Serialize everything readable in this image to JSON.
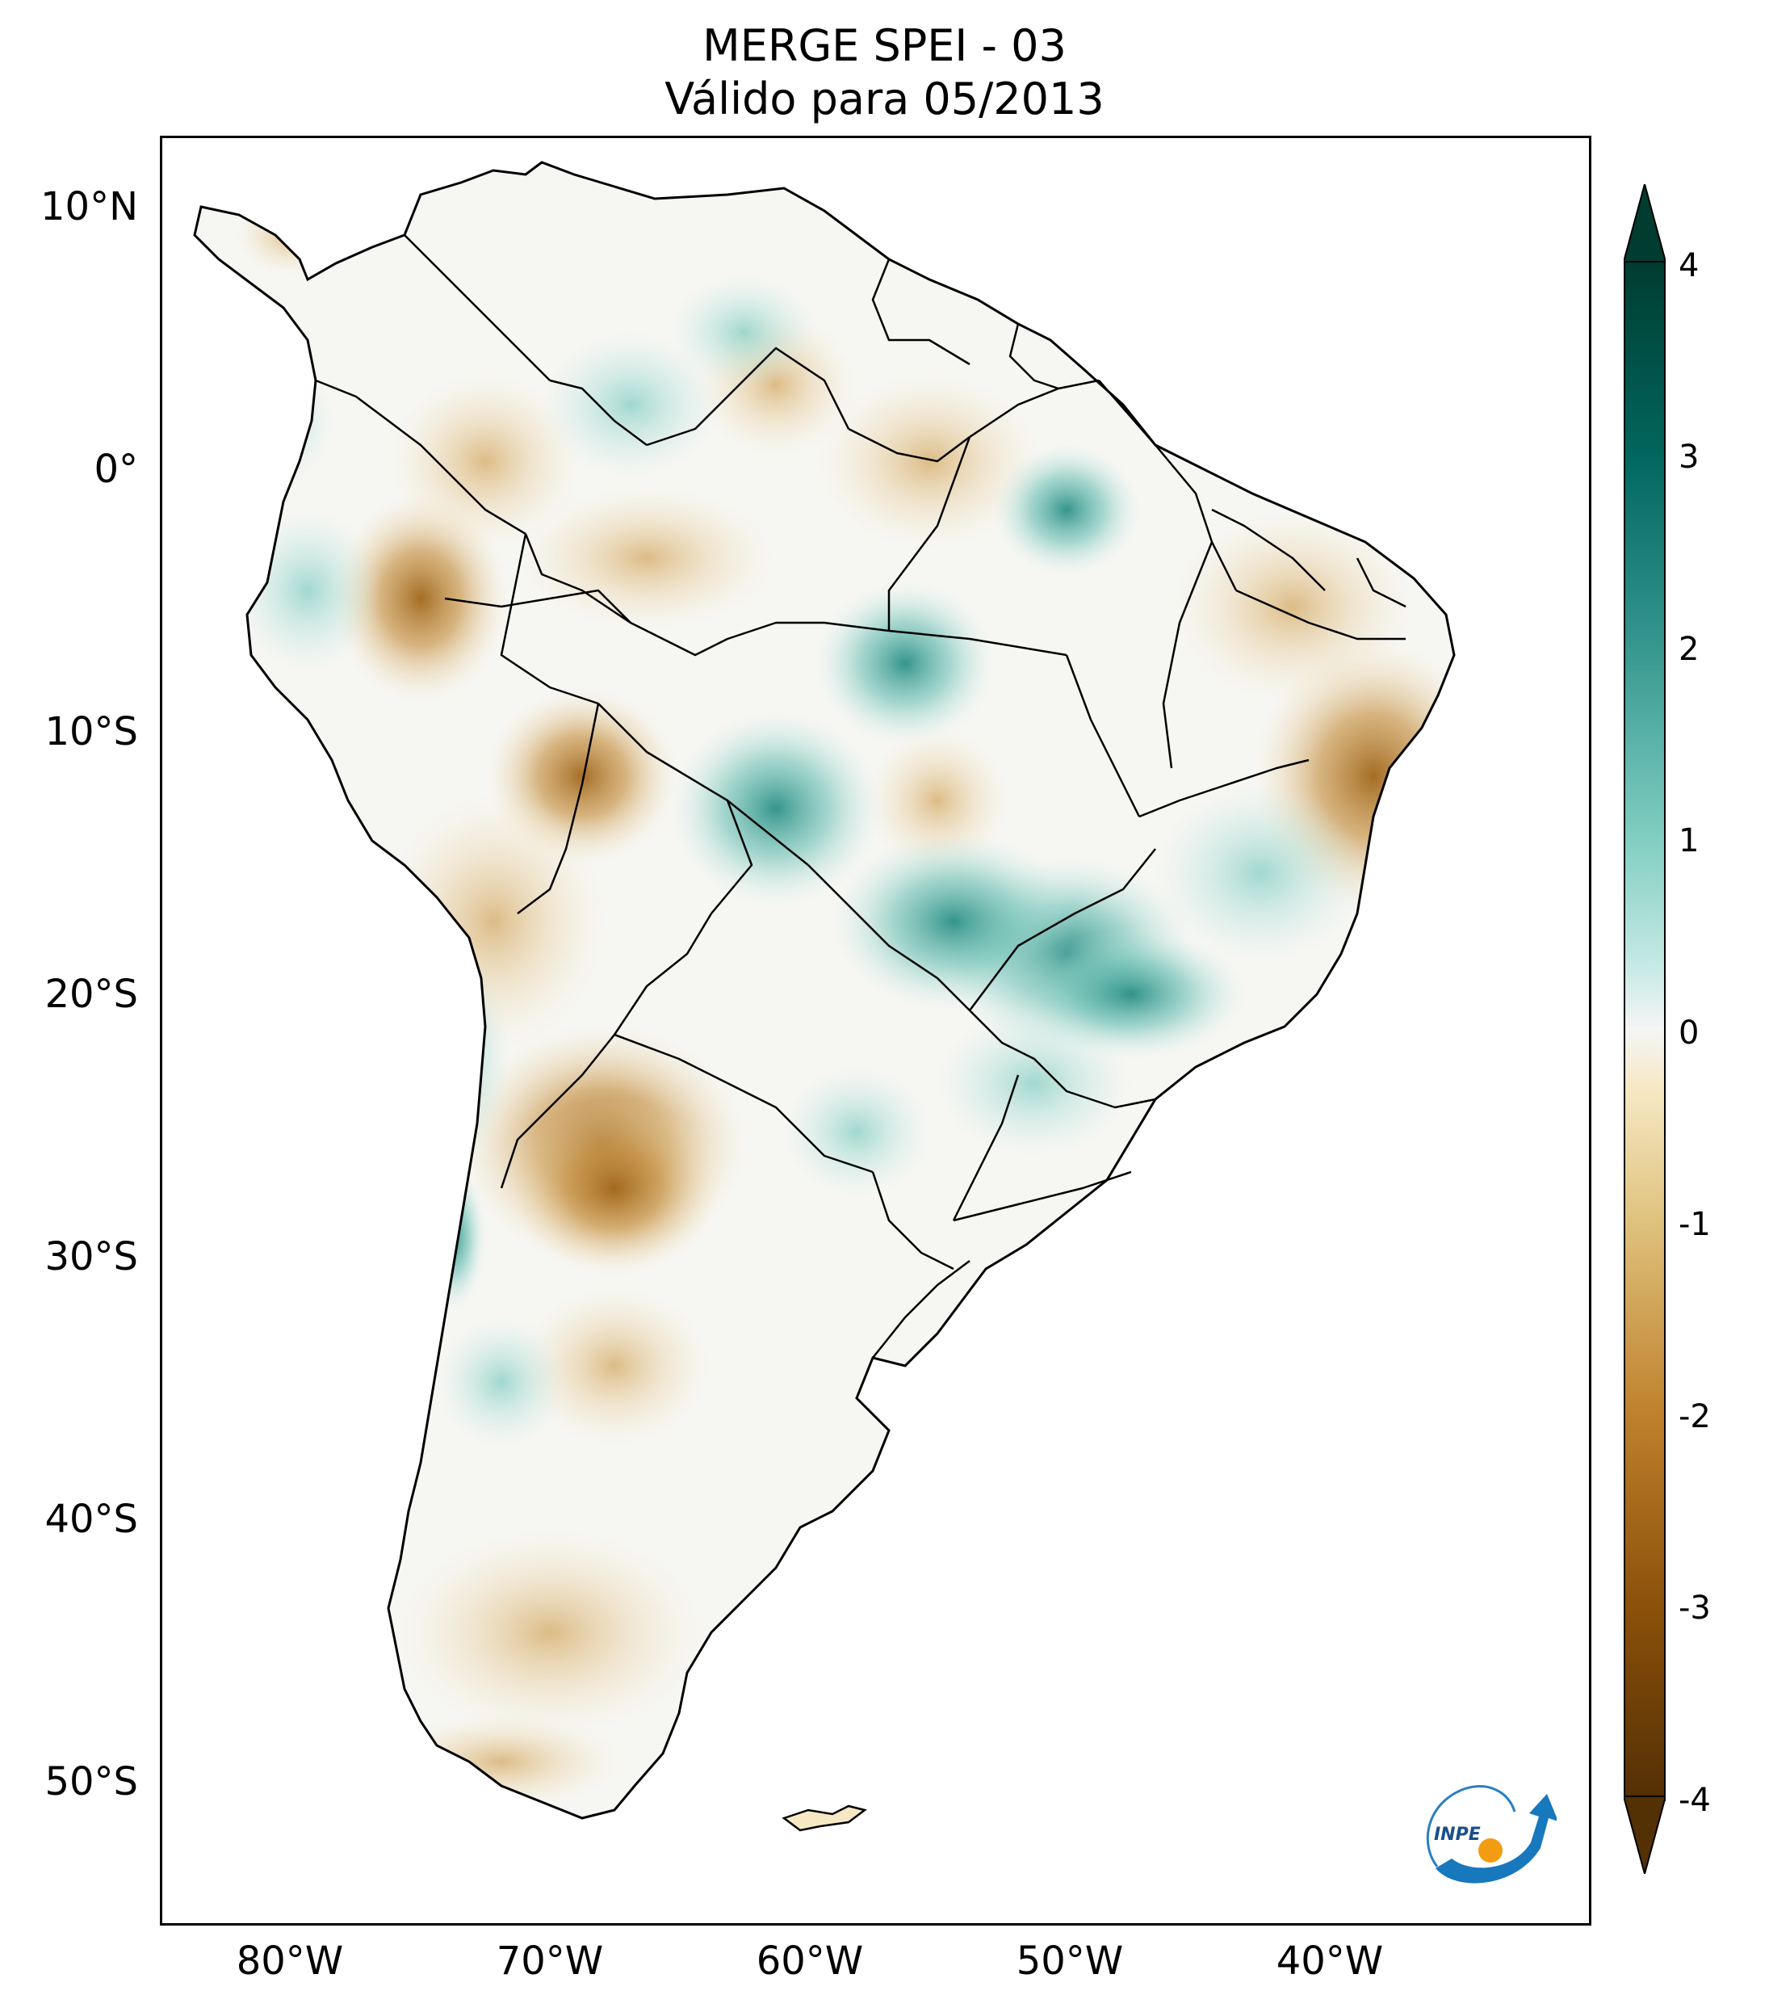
{
  "title": {
    "line1": "MERGE   SPEI - 03",
    "line2": "Válido para 05/2013"
  },
  "map": {
    "region": "South America",
    "variable": "SPEI - 03",
    "lat_range": [
      -56,
      13
    ],
    "lon_range": [
      -85,
      -30
    ],
    "lat_ticks": [
      "10°N",
      "0°",
      "10°S",
      "20°S",
      "30°S",
      "40°S",
      "50°S"
    ],
    "lon_ticks": [
      "80°W",
      "70°W",
      "60°W",
      "50°W",
      "40°W"
    ],
    "colors": {
      "dry_extreme": "#543005",
      "dry_strong": "#8c510a",
      "dry_moderate": "#bf812d",
      "dry_mild": "#dfc27d",
      "dry_weak": "#f6e8c3",
      "neutral": "#f5f5f5",
      "wet_weak": "#c7eae5",
      "wet_mild": "#80cdc1",
      "wet_moderate": "#35978f",
      "wet_strong": "#01665e",
      "wet_extreme": "#003c30"
    }
  },
  "colorbar": {
    "ticks": [
      "4",
      "3",
      "2",
      "1",
      "0",
      "-1",
      "-2",
      "-3",
      "-4"
    ],
    "min": -4,
    "max": 4,
    "extend": "both"
  },
  "logo": {
    "text": "INPE"
  }
}
